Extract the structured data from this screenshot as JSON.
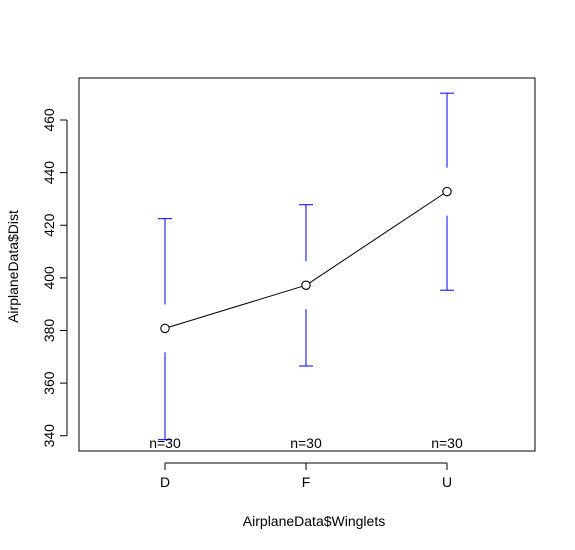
{
  "chart_data": {
    "type": "line",
    "title": "",
    "xlabel": "AirplaneData$Winglets",
    "ylabel": "AirplaneData$Dist",
    "categories": [
      "D",
      "F",
      "U"
    ],
    "series": [
      {
        "values": [
          380.8,
          397.2,
          432.8
        ],
        "ci_low": [
          338.5,
          366.5,
          395.3
        ],
        "ci_high": [
          422.5,
          427.8,
          470.2
        ],
        "n_labels": [
          "n=30",
          "n=30",
          "n=30"
        ]
      }
    ],
    "ylim": [
      334,
      474
    ],
    "yticks": [
      340,
      360,
      380,
      400,
      420,
      440,
      460
    ],
    "grid": false,
    "colors": {
      "line": "#000000",
      "error_bar": "#0000ff"
    }
  }
}
